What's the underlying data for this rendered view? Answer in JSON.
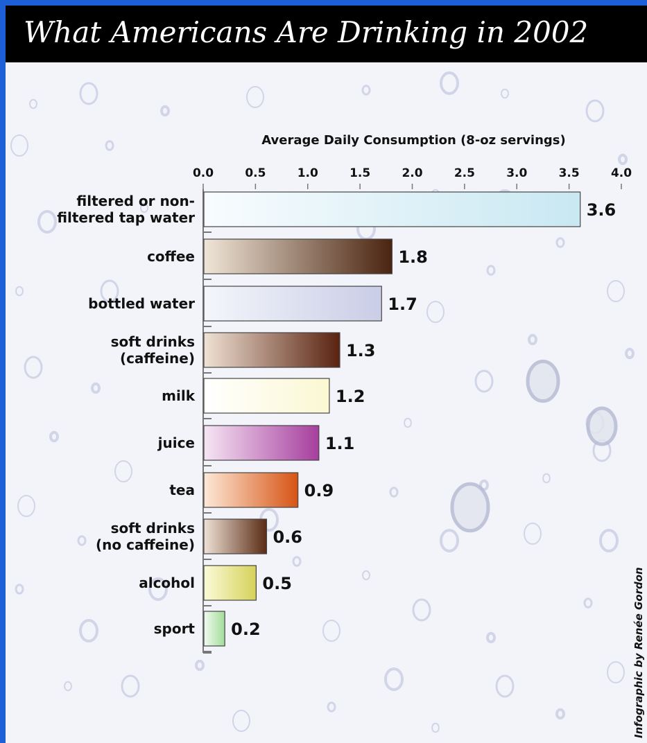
{
  "header": {
    "title": "What Americans Are Drinking in 2002"
  },
  "credit": "Infographic by Renée Gordon",
  "colors": {
    "frame": "#1d5fd6",
    "title_band": "#000000",
    "background": "#f2f4fa"
  },
  "chart_data": {
    "type": "bar",
    "orientation": "horizontal",
    "title": "What Americans Are Drinking in 2002",
    "xlabel": "Average Daily Consumption (8-oz servings)",
    "ylabel": "",
    "xlim": [
      0,
      4.0
    ],
    "xticks": [
      "0.0",
      "0.5",
      "1.0",
      "1.5",
      "2.0",
      "2.5",
      "3.0",
      "3.5",
      "4.0"
    ],
    "grid": false,
    "categories": [
      [
        "filtered or non-",
        "filtered tap water"
      ],
      [
        "coffee"
      ],
      [
        "bottled water"
      ],
      [
        "soft drinks",
        "(caffeine)"
      ],
      [
        "milk"
      ],
      [
        "juice"
      ],
      [
        "tea"
      ],
      [
        "soft drinks",
        "(no caffeine)"
      ],
      [
        "alcohol"
      ],
      [
        "sport"
      ]
    ],
    "values": [
      3.6,
      1.8,
      1.7,
      1.3,
      1.2,
      1.1,
      0.9,
      0.6,
      0.5,
      0.2
    ],
    "value_labels": [
      "3.6",
      "1.8",
      "1.7",
      "1.3",
      "1.2",
      "1.1",
      "0.9",
      "0.6",
      "0.5",
      "0.2"
    ],
    "bar_colors": [
      [
        "#f8fcfe",
        "#c9e8f2"
      ],
      [
        "#f0e6d8",
        "#4a2410"
      ],
      [
        "#f4f6fb",
        "#c9cde6"
      ],
      [
        "#f0e2d4",
        "#5a2210"
      ],
      [
        "#ffffff",
        "#fbf8d2"
      ],
      [
        "#f6e6f4",
        "#a63e9e"
      ],
      [
        "#fde9d8",
        "#d65414"
      ],
      [
        "#efe2d6",
        "#5a2c14"
      ],
      [
        "#fbfad8",
        "#d6d25a"
      ],
      [
        "#f2fbf0",
        "#a2dc9a"
      ]
    ]
  }
}
